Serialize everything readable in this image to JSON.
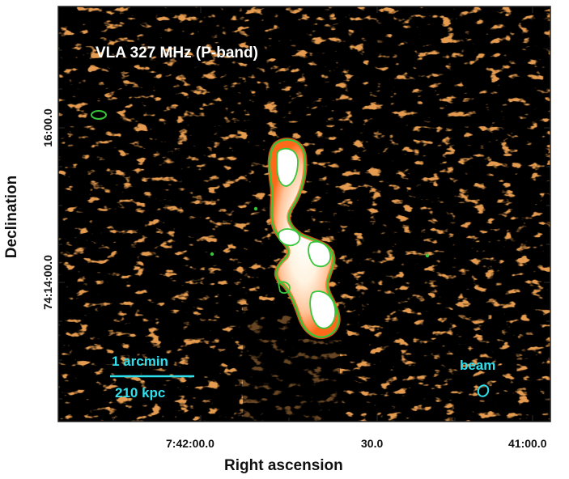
{
  "image": {
    "title": "VLA 327 MHz (P-band)",
    "colors": {
      "background": "#000000",
      "emission": "#ff6a1a",
      "contour": "#37c63a",
      "annotation": "#2fe0ee"
    }
  },
  "axes": {
    "xlabel": "Right ascension",
    "ylabel": "Declination",
    "xticks": [
      "7:42:00.0",
      "30.0",
      "41:00.0"
    ],
    "yticks": [
      "16:00.0",
      "74:14:00.0"
    ]
  },
  "scalebar": {
    "length_label": "1 arcmin",
    "distance_label": "210 kpc"
  },
  "beam": {
    "label": "beam"
  }
}
